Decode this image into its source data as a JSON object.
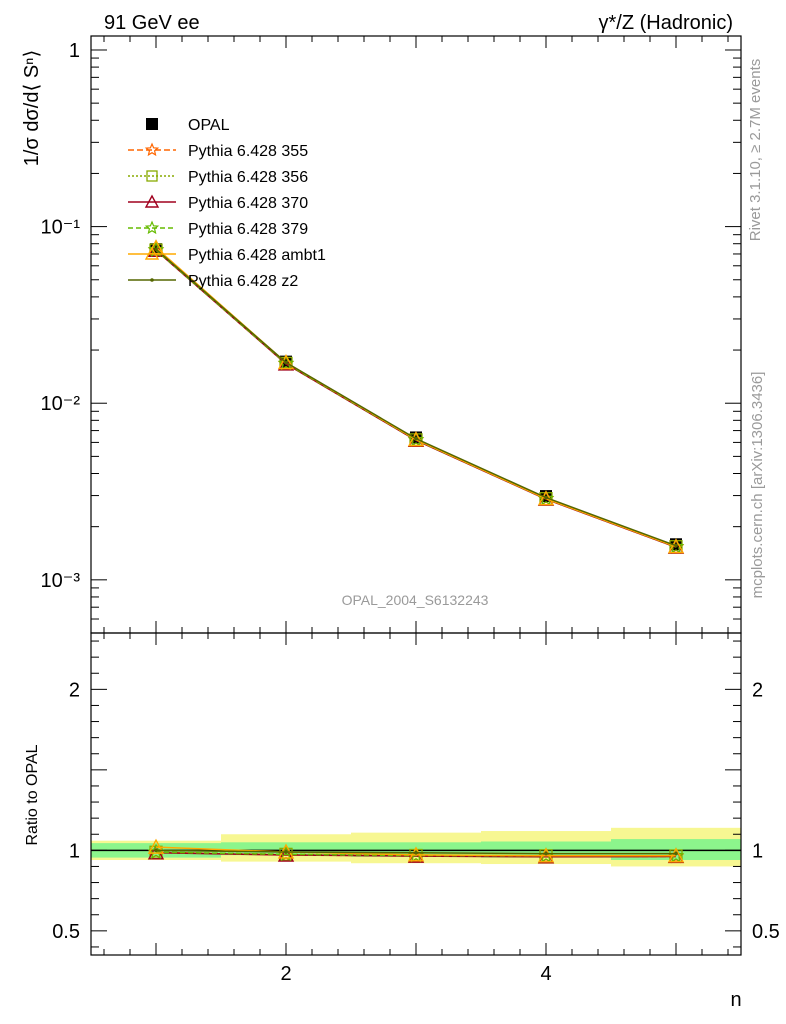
{
  "header": {
    "left": "91 GeV ee",
    "right": "γ*/Z (Hadronic)"
  },
  "side_labels": {
    "rivet": "Rivet 3.1.10, ≥ 2.7M events",
    "mcplots": "mcplots.cern.ch [arXiv:1306.3436]"
  },
  "watermark": "OPAL_2004_S6132243",
  "chart_data": [
    {
      "type": "line",
      "panel": "main",
      "ylabel": "1/σ dσ/d⟨ Sⁿ⟩",
      "yscale": "log",
      "xlim": [
        0.5,
        5.5
      ],
      "ylim": [
        0.0005,
        1.2
      ],
      "x": [
        1,
        2,
        3,
        4,
        5
      ],
      "ytick_labels": [
        "10⁻³",
        "10⁻²",
        "10⁻¹",
        "1"
      ],
      "legend_position": "top-left",
      "series": [
        {
          "name": "OPAL",
          "values": [
            0.0745,
            0.0172,
            0.0064,
            0.00298,
            0.00159
          ],
          "color": "#000000",
          "marker": "square",
          "dash": "none"
        },
        {
          "name": "Pythia 6.428 355",
          "values": [
            0.0735,
            0.0167,
            0.00618,
            0.00287,
            0.00153
          ],
          "color": "#ff6600",
          "marker": "star",
          "dash": "6,3"
        },
        {
          "name": "Pythia 6.428 356",
          "values": [
            0.0736,
            0.0168,
            0.0062,
            0.00288,
            0.00154
          ],
          "color": "#88aa00",
          "marker": "open-square",
          "dash": "2,2"
        },
        {
          "name": "Pythia 6.428 370",
          "values": [
            0.0734,
            0.0167,
            0.00617,
            0.00286,
            0.00153
          ],
          "color": "#a0001e",
          "marker": "open-triangle",
          "dash": "none"
        },
        {
          "name": "Pythia 6.428 379",
          "values": [
            0.0737,
            0.0168,
            0.0062,
            0.00288,
            0.00154
          ],
          "color": "#66bb00",
          "marker": "star",
          "dash": "5,3"
        },
        {
          "name": "Pythia 6.428 ambt1",
          "values": [
            0.076,
            0.017,
            0.00622,
            0.00288,
            0.00154
          ],
          "color": "#ffaa00",
          "marker": "open-triangle",
          "dash": "none"
        },
        {
          "name": "Pythia 6.428 z2",
          "values": [
            0.0745,
            0.017,
            0.0063,
            0.00292,
            0.00156
          ],
          "color": "#556600",
          "marker": "dot",
          "dash": "none"
        }
      ]
    },
    {
      "type": "line",
      "panel": "ratio",
      "ylabel": "Ratio to OPAL",
      "xlabel": "n",
      "xlim": [
        0.5,
        5.5
      ],
      "ylim": [
        0.35,
        2.35
      ],
      "x": [
        1,
        2,
        3,
        4,
        5
      ],
      "xtick_labels": [
        "2",
        "4"
      ],
      "ytick_labels": [
        "0.5",
        "1",
        "2"
      ],
      "bands": {
        "inner": {
          "color": "#8cf58c",
          "low": [
            0.955,
            0.97,
            0.96,
            0.955,
            0.94
          ],
          "high": [
            1.045,
            1.05,
            1.05,
            1.055,
            1.07
          ]
        },
        "outer": {
          "color": "#f7f792",
          "low": [
            0.94,
            0.93,
            0.92,
            0.915,
            0.9
          ],
          "high": [
            1.06,
            1.1,
            1.11,
            1.12,
            1.14
          ]
        }
      },
      "series": [
        {
          "name": "Pythia 6.428 355",
          "values": [
            0.987,
            0.972,
            0.965,
            0.963,
            0.962
          ]
        },
        {
          "name": "Pythia 6.428 356",
          "values": [
            0.988,
            0.975,
            0.968,
            0.966,
            0.965
          ]
        },
        {
          "name": "Pythia 6.428 370",
          "values": [
            0.985,
            0.971,
            0.964,
            0.96,
            0.962
          ]
        },
        {
          "name": "Pythia 6.428 379",
          "values": [
            0.989,
            0.975,
            0.968,
            0.966,
            0.966
          ]
        },
        {
          "name": "Pythia 6.428 ambt1",
          "values": [
            1.02,
            0.99,
            0.972,
            0.966,
            0.966
          ]
        },
        {
          "name": "Pythia 6.428 z2",
          "values": [
            1.0,
            0.99,
            0.985,
            0.98,
            0.98
          ]
        }
      ]
    }
  ]
}
